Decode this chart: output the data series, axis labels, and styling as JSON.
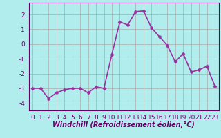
{
  "x": [
    0,
    1,
    2,
    3,
    4,
    5,
    6,
    7,
    8,
    9,
    10,
    11,
    12,
    13,
    14,
    15,
    16,
    17,
    18,
    19,
    20,
    21,
    22,
    23
  ],
  "y": [
    -3.0,
    -3.0,
    -3.7,
    -3.3,
    -3.1,
    -3.0,
    -3.0,
    -3.3,
    -2.9,
    -3.0,
    -0.7,
    1.5,
    1.3,
    2.2,
    2.25,
    1.1,
    0.5,
    -0.1,
    -1.2,
    -0.65,
    -1.9,
    -1.75,
    -1.5,
    -2.85
  ],
  "line_color": "#9b30a0",
  "marker": "D",
  "marker_size": 2.5,
  "bg_color": "#b2eded",
  "grid_color": "#aaaaaa",
  "xlabel": "Windchill (Refroidissement éolien,°C)",
  "xlabel_fontsize": 7.0,
  "ylim": [
    -4.5,
    2.8
  ],
  "xlim": [
    -0.5,
    23.5
  ],
  "yticks": [
    -4,
    -3,
    -2,
    -1,
    0,
    1,
    2
  ],
  "xticks": [
    0,
    1,
    2,
    3,
    4,
    5,
    6,
    7,
    8,
    9,
    10,
    11,
    12,
    13,
    14,
    15,
    16,
    17,
    18,
    19,
    20,
    21,
    22,
    23
  ],
  "tick_fontsize": 6.5,
  "line_width": 1.2
}
